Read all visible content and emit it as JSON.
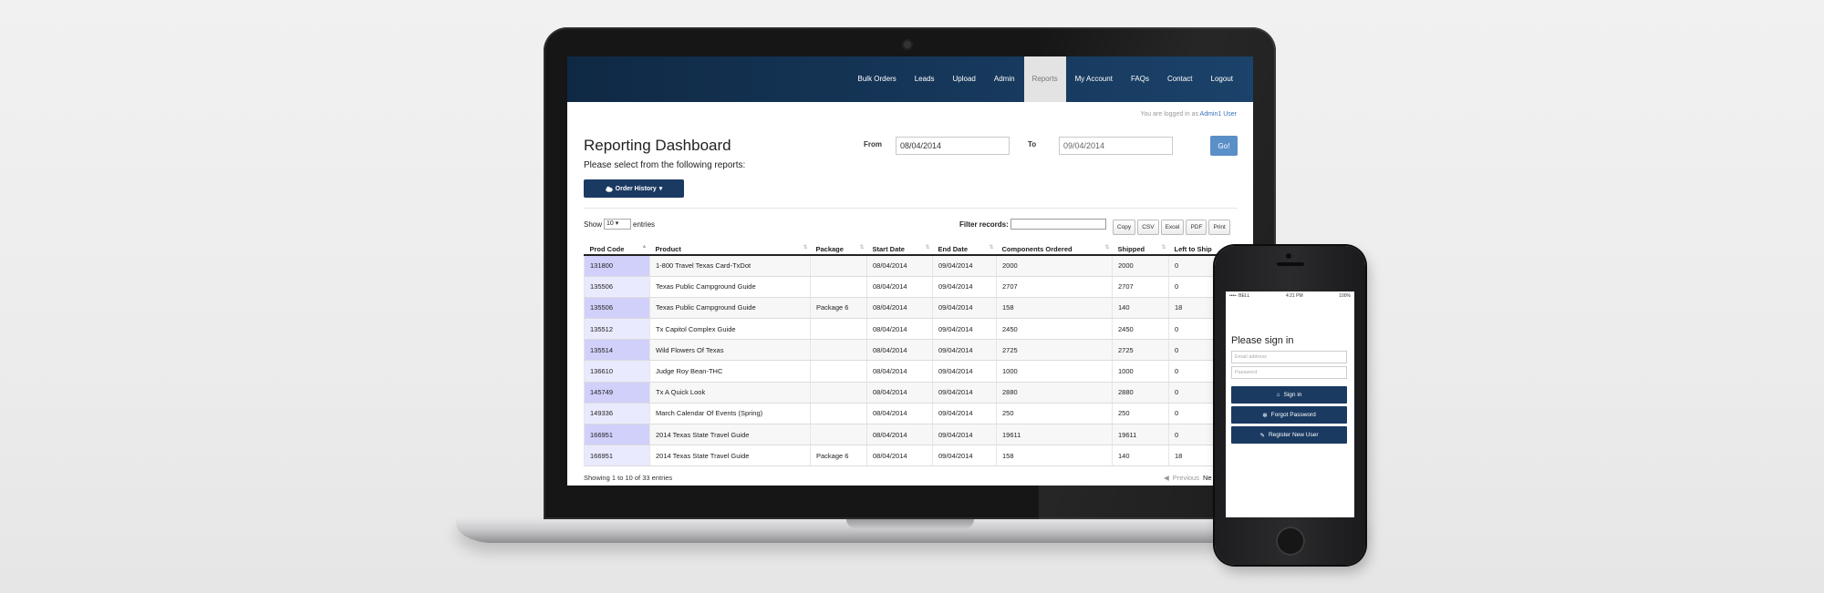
{
  "nav": {
    "items": [
      {
        "label": "Bulk Orders",
        "active": false
      },
      {
        "label": "Leads",
        "active": false
      },
      {
        "label": "Upload",
        "active": false
      },
      {
        "label": "Admin",
        "active": false
      },
      {
        "label": "Reports",
        "active": true
      },
      {
        "label": "My Account",
        "active": false
      },
      {
        "label": "FAQs",
        "active": false
      },
      {
        "label": "Contact",
        "active": false
      },
      {
        "label": "Logout",
        "active": false
      }
    ]
  },
  "session": {
    "logged_prefix": "You are logged in as",
    "user": "Admin1 User"
  },
  "dashboard": {
    "title": "Reporting Dashboard",
    "subtitle": "Please select from the following reports:",
    "report_button": "Order History",
    "from_label": "From",
    "from_value": "08/04/2014",
    "to_label": "To",
    "to_value": "09/04/2014",
    "go_label": "Go!"
  },
  "table_controls": {
    "show_label": "Show",
    "show_value": "10",
    "entries_label": "entries",
    "filter_label": "Filter records:",
    "export_buttons": [
      "Copy",
      "CSV",
      "Excel",
      "PDF",
      "Print"
    ]
  },
  "table": {
    "columns": [
      "Prod Code",
      "Product",
      "Package",
      "Start Date",
      "End Date",
      "Components Ordered",
      "Shipped",
      "Left to Ship"
    ],
    "rows": [
      [
        "131800",
        "1-800 Travel Texas Card-TxDot",
        "",
        "08/04/2014",
        "09/04/2014",
        "2000",
        "2000",
        "0"
      ],
      [
        "135506",
        "Texas Public Campground Guide",
        "",
        "08/04/2014",
        "09/04/2014",
        "2707",
        "2707",
        "0"
      ],
      [
        "135506",
        "Texas Public Campground Guide",
        "Package 6",
        "08/04/2014",
        "09/04/2014",
        "158",
        "140",
        "18"
      ],
      [
        "135512",
        "Tx Capitol Complex Guide",
        "",
        "08/04/2014",
        "09/04/2014",
        "2450",
        "2450",
        "0"
      ],
      [
        "135514",
        "Wild Flowers Of Texas",
        "",
        "08/04/2014",
        "09/04/2014",
        "2725",
        "2725",
        "0"
      ],
      [
        "136610",
        "Judge Roy Bean-THC",
        "",
        "08/04/2014",
        "09/04/2014",
        "1000",
        "1000",
        "0"
      ],
      [
        "145749",
        "Tx A Quick Look",
        "",
        "08/04/2014",
        "09/04/2014",
        "2880",
        "2880",
        "0"
      ],
      [
        "149336",
        "March Calendar Of Events (Spring)",
        "",
        "08/04/2014",
        "09/04/2014",
        "250",
        "250",
        "0"
      ],
      [
        "166951",
        "2014 Texas State Travel Guide",
        "",
        "08/04/2014",
        "09/04/2014",
        "19611",
        "19611",
        "0"
      ],
      [
        "166951",
        "2014 Texas State Travel Guide",
        "Package 6",
        "08/04/2014",
        "09/04/2014",
        "158",
        "140",
        "18"
      ]
    ],
    "info": "Showing 1 to 10 of 33 entries",
    "prev_label": "Previous",
    "next_label": "Ne"
  },
  "phone": {
    "carrier": "••••◦ BELL",
    "time": "4:21 PM",
    "battery": "100%",
    "title": "Please sign in",
    "email_placeholder": "Email address",
    "password_placeholder": "Password",
    "signin_label": "Sign in",
    "forgot_label": "Forgot Password",
    "register_label": "Register New User"
  },
  "colors": {
    "nav": "#16375a",
    "primary_button": "#1a3a62",
    "go_button": "#5b8fc7",
    "code_highlight": "#d0d0fa"
  }
}
